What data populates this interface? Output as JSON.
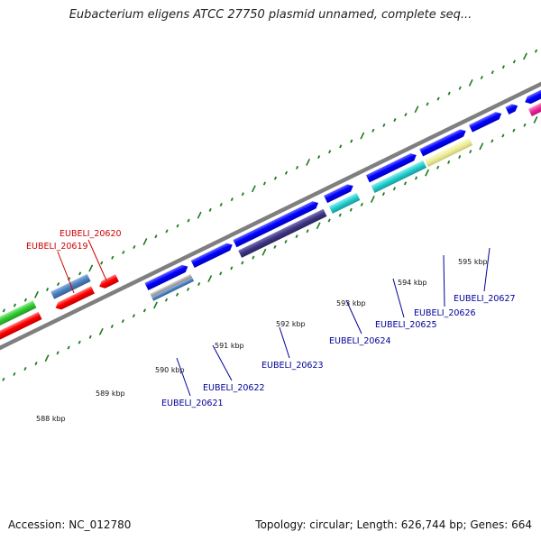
{
  "title": "Eubacterium eligens ATCC 27750 plasmid unnamed, complete seq...",
  "scale_labels": [
    "588 kbp",
    "589 kbp",
    "590 kbp",
    "591 kbp",
    "592 kbp",
    "593 kbp",
    "594 kbp",
    "595 kbp"
  ],
  "genes": [
    {
      "label": "EUBELI_20619",
      "strand": "reverse",
      "color": "#cc0000",
      "track_color": "#ff0000"
    },
    {
      "label": "EUBELI_20620",
      "strand": "reverse",
      "color": "#cc0000",
      "track_color": "#ff0000"
    },
    {
      "label": "EUBELI_20621",
      "strand": "forward",
      "color": "#000099",
      "track_color": "#0000ff"
    },
    {
      "label": "EUBELI_20622",
      "strand": "forward",
      "color": "#000099",
      "track_color": "#0000ff"
    },
    {
      "label": "EUBELI_20623",
      "strand": "forward",
      "color": "#000099",
      "track_color": "#0000ff"
    },
    {
      "label": "EUBELI_20624",
      "strand": "forward",
      "color": "#000099",
      "track_color": "#0000ff"
    },
    {
      "label": "EUBELI_20625",
      "strand": "forward",
      "color": "#000099",
      "track_color": "#0000ff"
    },
    {
      "label": "EUBELI_20626",
      "strand": "forward",
      "color": "#000099",
      "track_color": "#0000ff"
    },
    {
      "label": "EUBELI_20627",
      "strand": "forward",
      "color": "#000099",
      "track_color": "#0000ff"
    }
  ],
  "colors": {
    "backbone": "#7f7f7f",
    "tick": "#1f7a1f",
    "reverse_cds": "#ff0000",
    "forward_cds": "#0000ff",
    "feature_green": "#33cc33",
    "feature_steelblue": "#4a7fbf",
    "feature_navy": "#3d3580",
    "feature_cyan": "#22cccc",
    "feature_khaki": "#eeee99",
    "feature_magenta": "#ee2299",
    "feature_grey": "#aaaaaa"
  },
  "footer": {
    "accession": "Accession: NC_012780",
    "summary": "Topology: circular; Length: 626,744 bp; Genes: 664"
  }
}
